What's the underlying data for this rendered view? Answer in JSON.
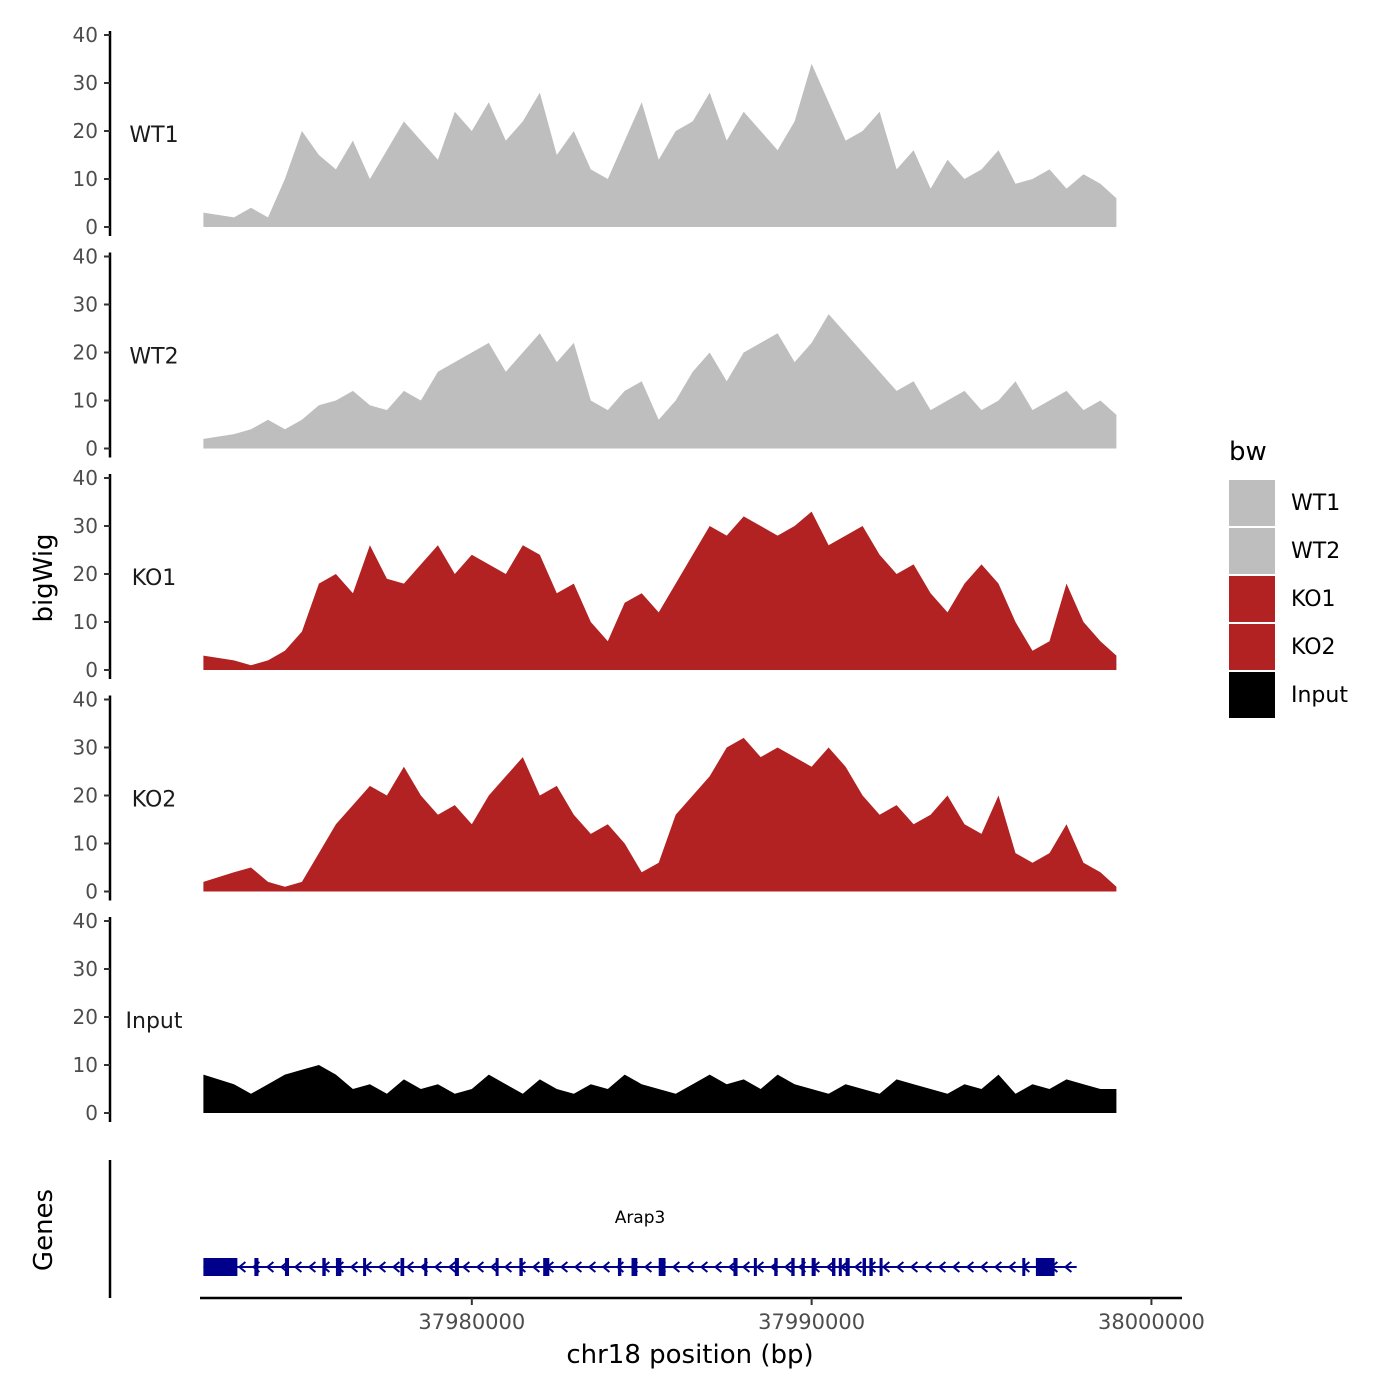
{
  "chart_data": {
    "type": "area",
    "chromosome": "chr18",
    "ylabel": "bigWig",
    "xlabel": "chr18 position (bp)",
    "genes_label": "Genes",
    "ylim": [
      0,
      40
    ],
    "yticks": [
      "0",
      "10",
      "20",
      "30",
      "40"
    ],
    "xlim": [
      37972000,
      38000900
    ],
    "xticks": [
      {
        "value": 37980000,
        "label": "37980000"
      },
      {
        "value": 37990000,
        "label": "37990000"
      },
      {
        "value": 38000000,
        "label": "38000000"
      }
    ],
    "legend": {
      "title": "bw",
      "position": "right",
      "entries": [
        {
          "label": "WT1",
          "color": "#bebebe"
        },
        {
          "label": "WT2",
          "color": "#bebebe"
        },
        {
          "label": "KO1",
          "color": "#b22222"
        },
        {
          "label": "KO2",
          "color": "#b22222"
        },
        {
          "label": "Input",
          "color": "#000000"
        }
      ]
    },
    "tracks": [
      {
        "name": "WT1",
        "color": "#bebebe",
        "x": [
          37972100,
          37973000,
          37973500,
          37974000,
          37974500,
          37975000,
          37975500,
          37976000,
          37976500,
          37977000,
          37977500,
          37978000,
          37978500,
          37979000,
          37979500,
          37980000,
          37980500,
          37981000,
          37981500,
          37982000,
          37982500,
          37983000,
          37983500,
          37984000,
          37984500,
          37985000,
          37985500,
          37986000,
          37986500,
          37987000,
          37987500,
          37988000,
          37988500,
          37989000,
          37989500,
          37990000,
          37990500,
          37991000,
          37991500,
          37992000,
          37992500,
          37993000,
          37993500,
          37994000,
          37994500,
          37995000,
          37995500,
          37996000,
          37996500,
          37997000,
          37997500,
          37998000,
          37998500,
          37998970
        ],
        "y": [
          3,
          2,
          4,
          2,
          10,
          20,
          15,
          12,
          18,
          10,
          16,
          22,
          18,
          14,
          24,
          20,
          26,
          18,
          22,
          28,
          15,
          20,
          12,
          10,
          18,
          26,
          14,
          20,
          22,
          28,
          18,
          24,
          20,
          16,
          22,
          34,
          26,
          18,
          20,
          24,
          12,
          16,
          8,
          14,
          10,
          12,
          16,
          9,
          10,
          12,
          8,
          11,
          9,
          6
        ]
      },
      {
        "name": "WT2",
        "color": "#bebebe",
        "x": [
          37972100,
          37973000,
          37973500,
          37974000,
          37974500,
          37975000,
          37975500,
          37976000,
          37976500,
          37977000,
          37977500,
          37978000,
          37978500,
          37979000,
          37979500,
          37980000,
          37980500,
          37981000,
          37981500,
          37982000,
          37982500,
          37983000,
          37983500,
          37984000,
          37984500,
          37985000,
          37985500,
          37986000,
          37986500,
          37987000,
          37987500,
          37988000,
          37988500,
          37989000,
          37989500,
          37990000,
          37990500,
          37991000,
          37991500,
          37992000,
          37992500,
          37993000,
          37993500,
          37994000,
          37994500,
          37995000,
          37995500,
          37996000,
          37996500,
          37997000,
          37997500,
          37998000,
          37998500,
          37998970
        ],
        "y": [
          2,
          3,
          4,
          6,
          4,
          6,
          9,
          10,
          12,
          9,
          8,
          12,
          10,
          16,
          18,
          20,
          22,
          16,
          20,
          24,
          18,
          22,
          10,
          8,
          12,
          14,
          6,
          10,
          16,
          20,
          14,
          20,
          22,
          24,
          18,
          22,
          28,
          24,
          20,
          16,
          12,
          14,
          8,
          10,
          12,
          8,
          10,
          14,
          8,
          10,
          12,
          8,
          10,
          7
        ]
      },
      {
        "name": "KO1",
        "color": "#b22222",
        "x": [
          37972100,
          37973000,
          37973500,
          37974000,
          37974500,
          37975000,
          37975500,
          37976000,
          37976500,
          37977000,
          37977500,
          37978000,
          37978500,
          37979000,
          37979500,
          37980000,
          37980500,
          37981000,
          37981500,
          37982000,
          37982500,
          37983000,
          37983500,
          37984000,
          37984500,
          37985000,
          37985500,
          37986000,
          37986500,
          37987000,
          37987500,
          37988000,
          37988500,
          37989000,
          37989500,
          37990000,
          37990500,
          37991000,
          37991500,
          37992000,
          37992500,
          37993000,
          37993500,
          37994000,
          37994500,
          37995000,
          37995500,
          37996000,
          37996500,
          37997000,
          37997500,
          37998000,
          37998500,
          37998970
        ],
        "y": [
          3,
          2,
          1,
          2,
          4,
          8,
          18,
          20,
          16,
          26,
          19,
          18,
          22,
          26,
          20,
          24,
          22,
          20,
          26,
          24,
          16,
          18,
          10,
          6,
          14,
          16,
          12,
          18,
          24,
          30,
          28,
          32,
          30,
          28,
          30,
          33,
          26,
          28,
          30,
          24,
          20,
          22,
          16,
          12,
          18,
          22,
          18,
          10,
          4,
          6,
          18,
          10,
          6,
          3
        ]
      },
      {
        "name": "KO2",
        "color": "#b22222",
        "x": [
          37972100,
          37973000,
          37973500,
          37974000,
          37974500,
          37975000,
          37975500,
          37976000,
          37976500,
          37977000,
          37977500,
          37978000,
          37978500,
          37979000,
          37979500,
          37980000,
          37980500,
          37981000,
          37981500,
          37982000,
          37982500,
          37983000,
          37983500,
          37984000,
          37984500,
          37985000,
          37985500,
          37986000,
          37986500,
          37987000,
          37987500,
          37988000,
          37988500,
          37989000,
          37989500,
          37990000,
          37990500,
          37991000,
          37991500,
          37992000,
          37992500,
          37993000,
          37993500,
          37994000,
          37994500,
          37995000,
          37995500,
          37996000,
          37996500,
          37997000,
          37997500,
          37998000,
          37998500,
          37998970
        ],
        "y": [
          2,
          4,
          5,
          2,
          1,
          2,
          8,
          14,
          18,
          22,
          20,
          26,
          20,
          16,
          18,
          14,
          20,
          24,
          28,
          20,
          22,
          16,
          12,
          14,
          10,
          4,
          6,
          16,
          20,
          24,
          30,
          32,
          28,
          30,
          28,
          26,
          30,
          26,
          20,
          16,
          18,
          14,
          16,
          20,
          14,
          12,
          20,
          8,
          6,
          8,
          14,
          6,
          4,
          1
        ]
      },
      {
        "name": "Input",
        "color": "#000000",
        "x": [
          37972100,
          37973000,
          37973500,
          37974000,
          37974500,
          37975000,
          37975500,
          37976000,
          37976500,
          37977000,
          37977500,
          37978000,
          37978500,
          37979000,
          37979500,
          37980000,
          37980500,
          37981000,
          37981500,
          37982000,
          37982500,
          37983000,
          37983500,
          37984000,
          37984500,
          37985000,
          37985500,
          37986000,
          37986500,
          37987000,
          37987500,
          37988000,
          37988500,
          37989000,
          37989500,
          37990000,
          37990500,
          37991000,
          37991500,
          37992000,
          37992500,
          37993000,
          37993500,
          37994000,
          37994500,
          37995000,
          37995500,
          37996000,
          37996500,
          37997000,
          37997500,
          37998000,
          37998500,
          37998970
        ],
        "y": [
          8,
          6,
          4,
          6,
          8,
          9,
          10,
          8,
          5,
          6,
          4,
          7,
          5,
          6,
          4,
          5,
          8,
          6,
          4,
          7,
          5,
          4,
          6,
          5,
          8,
          6,
          5,
          4,
          6,
          8,
          6,
          7,
          5,
          8,
          6,
          5,
          4,
          6,
          5,
          4,
          7,
          6,
          5,
          4,
          6,
          5,
          8,
          4,
          6,
          5,
          7,
          6,
          5,
          5
        ]
      }
    ],
    "genes": [
      {
        "name": "Arap3",
        "start": 37972100,
        "end": 37997800,
        "strand": "-",
        "exons": [
          [
            37972100,
            37973100
          ],
          [
            37973600,
            37973720
          ],
          [
            37974500,
            37974620
          ],
          [
            37975600,
            37975700
          ],
          [
            37976000,
            37976160
          ],
          [
            37976800,
            37976880
          ],
          [
            37977900,
            37978010
          ],
          [
            37978600,
            37978680
          ],
          [
            37979500,
            37979620
          ],
          [
            37980700,
            37980780
          ],
          [
            37981400,
            37981500
          ],
          [
            37982100,
            37982280
          ],
          [
            37984300,
            37984400
          ],
          [
            37984700,
            37984870
          ],
          [
            37985500,
            37985700
          ],
          [
            37987700,
            37987820
          ],
          [
            37988300,
            37988360
          ],
          [
            37988900,
            37989000
          ],
          [
            37989400,
            37989500
          ],
          [
            37989700,
            37989800
          ],
          [
            37990000,
            37990120
          ],
          [
            37990600,
            37990700
          ],
          [
            37990800,
            37990880
          ],
          [
            37991000,
            37991120
          ],
          [
            37991500,
            37991600
          ],
          [
            37991700,
            37991800
          ],
          [
            37992000,
            37992080
          ],
          [
            37996200,
            37996280
          ],
          [
            37996600,
            37997150
          ]
        ]
      }
    ]
  }
}
